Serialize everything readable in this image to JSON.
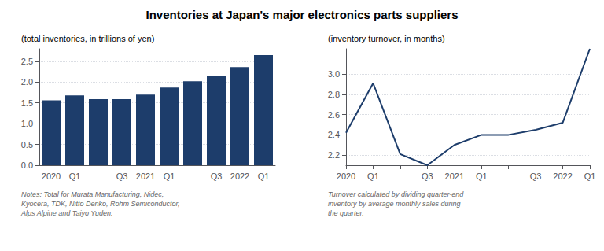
{
  "title": "Inventories at Japan's major electronics parts suppliers",
  "chart_data": [
    {
      "type": "bar",
      "ylabel": "(total inventories, in trillions of yen)",
      "annotation": "Notes: Total for Murata Manufacturing, Nidec,\nKyocera, TDK, Nitto Denko, Rohm Semiconductor,\nAlps Alpine and Taiyo Yuden.",
      "categories": [
        "2020",
        "Q1",
        null,
        "Q3",
        "2021",
        "Q1",
        null,
        "Q3",
        "2022",
        "Q1"
      ],
      "values": [
        1.56,
        1.68,
        1.59,
        1.59,
        1.7,
        1.87,
        2.02,
        2.14,
        2.36,
        2.65
      ],
      "color": "#1d3d6b",
      "ylim": [
        0,
        2.8
      ],
      "yticks": [
        {
          "value": 0,
          "label": "0.0"
        },
        0.5,
        {
          "value": 1.0,
          "label": "1.0"
        },
        1.5,
        {
          "value": 2.0,
          "label": "2.0"
        },
        2.5
      ],
      "grid": true
    },
    {
      "type": "line",
      "ylabel": "(inventory turnover, in months)",
      "annotation": "Turnover calculated by dividing quarter-end\ninventory by average monthly sales during\nthe quarter.",
      "categories": [
        "2020",
        "Q1",
        null,
        "Q3",
        "2021",
        "Q1",
        null,
        "Q3",
        "2022",
        "Q1"
      ],
      "values": [
        2.42,
        2.91,
        2.21,
        2.1,
        2.3,
        2.4,
        2.4,
        2.45,
        2.52,
        3.25
      ],
      "color": "#1d3d6b",
      "ylim": [
        2.1,
        3.25
      ],
      "yticks": [
        2.2,
        2.4,
        2.6,
        2.8,
        {
          "value": 3.0,
          "label": "3.0"
        }
      ],
      "grid": true
    }
  ]
}
